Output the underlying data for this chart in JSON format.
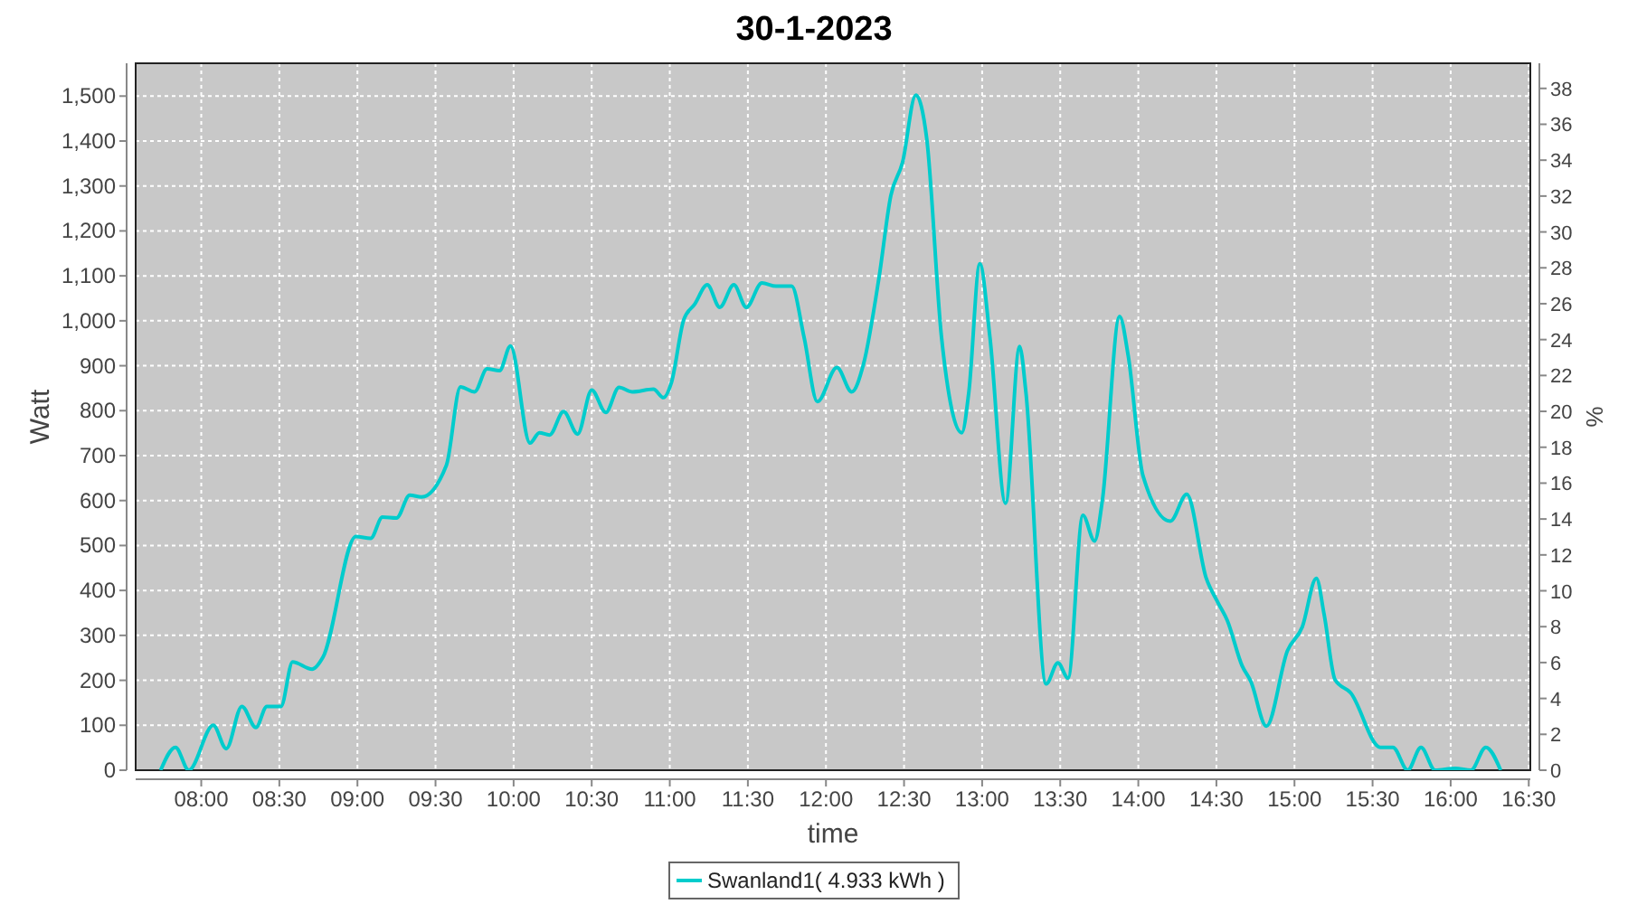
{
  "chart_data": {
    "type": "line",
    "title": "30-1-2023",
    "xlabel": "time",
    "ylabel": "Watt",
    "y2label": "%",
    "xlim": [
      7.58,
      16.51
    ],
    "xticks": [
      {
        "value": 8,
        "label": "08:00"
      },
      {
        "value": 8.5,
        "label": "08:30"
      },
      {
        "value": 9,
        "label": "09:00"
      },
      {
        "value": 9.5,
        "label": "09:30"
      },
      {
        "value": 10,
        "label": "10:00"
      },
      {
        "value": 10.5,
        "label": "10:30"
      },
      {
        "value": 11,
        "label": "11:00"
      },
      {
        "value": 11.5,
        "label": "11:30"
      },
      {
        "value": 12,
        "label": "12:00"
      },
      {
        "value": 12.5,
        "label": "12:30"
      },
      {
        "value": 13,
        "label": "13:00"
      },
      {
        "value": 13.5,
        "label": "13:30"
      },
      {
        "value": 14,
        "label": "14:00"
      },
      {
        "value": 14.5,
        "label": "14:30"
      },
      {
        "value": 15,
        "label": "15:00"
      },
      {
        "value": 15.5,
        "label": "15:30"
      },
      {
        "value": 16,
        "label": "16:00"
      },
      {
        "value": 16.5,
        "label": "16:30"
      }
    ],
    "ylim": [
      0,
      1573
    ],
    "yticks": [
      0,
      100,
      200,
      300,
      400,
      500,
      600,
      700,
      800,
      900,
      {
        "value": 1000,
        "label": "1,000"
      },
      {
        "value": 1100,
        "label": "1,100"
      },
      {
        "value": 1200,
        "label": "1,200"
      },
      {
        "value": 1300,
        "label": "1,300"
      },
      {
        "value": 1400,
        "label": "1,400"
      },
      {
        "value": 1500,
        "label": "1,500"
      }
    ],
    "y2lim": [
      0,
      39.4
    ],
    "y2ticks": [
      0,
      2,
      4,
      6,
      8,
      10,
      12,
      14,
      16,
      18,
      20,
      22,
      24,
      26,
      28,
      30,
      32,
      34,
      36,
      38
    ],
    "grid": true,
    "legend": "bottom",
    "marker": "none",
    "series": [
      {
        "name": "Swanland1( 4.933 kWh )",
        "color": "#00cccc",
        "x": [
          7.74,
          7.835,
          7.92,
          8.077,
          8.16,
          8.26,
          8.35,
          8.42,
          8.51,
          8.585,
          8.71,
          8.78,
          8.99,
          9.085,
          9.16,
          9.25,
          9.335,
          9.41,
          9.57,
          9.66,
          9.75,
          9.83,
          9.91,
          9.98,
          10.105,
          10.165,
          10.23,
          10.32,
          10.41,
          10.5,
          10.59,
          10.675,
          10.76,
          10.895,
          10.96,
          11.01,
          11.09,
          11.16,
          11.24,
          11.32,
          11.41,
          11.49,
          11.59,
          11.68,
          11.78,
          11.86,
          11.945,
          12.07,
          12.165,
          12.24,
          12.34,
          12.415,
          12.49,
          12.575,
          12.645,
          12.74,
          12.87,
          12.915,
          12.985,
          13.05,
          13.15,
          13.24,
          13.28,
          13.41,
          13.485,
          13.55,
          13.645,
          13.72,
          13.77,
          13.88,
          13.935,
          14.03,
          14.205,
          14.31,
          14.435,
          14.51,
          14.57,
          14.665,
          14.72,
          14.82,
          14.955,
          15.05,
          15.14,
          15.19,
          15.26,
          15.36,
          15.55,
          15.63,
          15.725,
          15.81,
          15.9,
          16.03,
          16.13,
          16.225,
          16.32
        ],
        "values": [
          0,
          51,
          0,
          100,
          48,
          142,
          95,
          142,
          142,
          241,
          225,
          252,
          520,
          516,
          563,
          561,
          612,
          608,
          679,
          853,
          842,
          893,
          889,
          944,
          728,
          751,
          746,
          798,
          748,
          846,
          796,
          852,
          842,
          848,
          829,
          862,
          1003,
          1037,
          1080,
          1030,
          1080,
          1030,
          1084,
          1077,
          1077,
          963,
          820,
          896,
          842,
          903,
          1097,
          1278,
          1352,
          1502,
          1406,
          963,
          751,
          842,
          1127,
          963,
          594,
          943,
          842,
          192,
          239,
          205,
          567,
          510,
          601,
          1010,
          923,
          655,
          554,
          614,
          427,
          373,
          333,
          232,
          198,
          98,
          266,
          319,
          427,
          346,
          201,
          172,
          51,
          51,
          0,
          51,
          0,
          4,
          0,
          51,
          0
        ]
      }
    ]
  }
}
